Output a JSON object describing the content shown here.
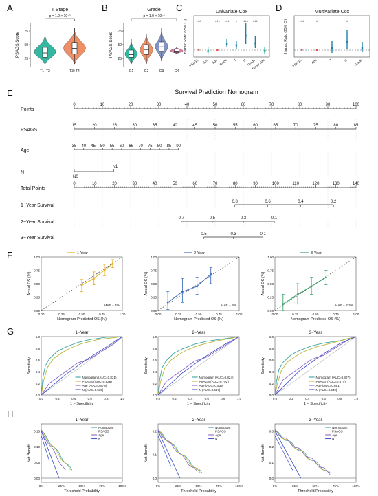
{
  "colors": {
    "violin_t12": "#2bb39b",
    "violin_t34": "#f08a5d",
    "g1": "#2bb39b",
    "g2": "#f08a5d",
    "g3": "#7b8fc0",
    "g4": "#ea6fa3",
    "ref": "#e0533a",
    "psags": "#2bb39b",
    "cox_alt": "#1f7fa8",
    "y1": "#e3b022",
    "y2": "#3d6fbf",
    "y3": "#3aa36a",
    "nomogram": "#3aa3a3",
    "psags_roc": "#b7b436",
    "age": "#8a63c9",
    "n": "#4457c9",
    "diag": "#bbbbbb"
  },
  "panel_letters": [
    "A",
    "B",
    "C",
    "D",
    "E",
    "F",
    "G",
    "H"
  ],
  "chart_data": [
    {
      "id": "A",
      "type": "violin",
      "title": "T Stage",
      "ylabel": "PSAGS Score",
      "categories": [
        "T1+T2",
        "T3+T4"
      ],
      "ylim": [
        10,
        90
      ],
      "yticks": [
        "25",
        "50",
        "75"
      ],
      "boxes": [
        {
          "q1": 27,
          "median": 35,
          "q3": 45,
          "min": 15,
          "max": 70
        },
        {
          "q1": 33,
          "median": 43,
          "q3": 54,
          "min": 15,
          "max": 80
        }
      ],
      "annotation": "p = 1.9 × 10⁻²"
    },
    {
      "id": "B",
      "type": "violin",
      "title": "Grade",
      "ylabel": "PSAGS Score",
      "categories": [
        "G1",
        "G2",
        "G3",
        "G4"
      ],
      "ylim": [
        10,
        90
      ],
      "yticks": [
        "25",
        "50",
        "75"
      ],
      "boxes": [
        {
          "q1": 27,
          "median": 32,
          "q3": 40,
          "min": 15,
          "max": 60
        },
        {
          "q1": 32,
          "median": 41,
          "q3": 50,
          "min": 15,
          "max": 70
        },
        {
          "q1": 38,
          "median": 46,
          "q3": 55,
          "min": 20,
          "max": 80
        },
        {
          "q1": 36,
          "median": 38,
          "q3": 42,
          "min": 34,
          "max": 45
        }
      ],
      "annotation": "p = 1.0 × 10⁻²"
    },
    {
      "id": "C",
      "type": "forest",
      "title": "Univariate Cox",
      "ylabel": "Hazard Ratio (95% CI)",
      "categories": [
        "PSAGS",
        "Sex",
        "Age",
        "Stage",
        "T",
        "N",
        "Grade",
        "Tumor size"
      ],
      "hr": [
        1.06,
        0.85,
        1.02,
        1.9,
        1.7,
        3.1,
        2.0,
        0.9
      ],
      "lo": [
        1.03,
        0.4,
        1.0,
        1.4,
        1.2,
        1.9,
        1.3,
        0.5
      ],
      "hi": [
        1.09,
        1.5,
        1.04,
        2.6,
        2.4,
        5.0,
        3.0,
        1.5
      ],
      "signif": [
        "***",
        "",
        "***",
        "***",
        "*",
        "***",
        "***",
        ""
      ]
    },
    {
      "id": "D",
      "type": "forest",
      "title": "Multivariate Cox",
      "ylabel": "Hazard Ratio (95% CI)",
      "categories": [
        "PSAGS",
        "Age",
        "T",
        "N",
        "Grade"
      ],
      "hr": [
        1.05,
        1.02,
        1.3,
        2.2,
        1.3
      ],
      "lo": [
        1.02,
        1.0,
        0.6,
        1.2,
        0.7
      ],
      "hi": [
        1.08,
        1.04,
        2.4,
        3.9,
        2.2
      ],
      "signif": [
        "***",
        "*",
        "",
        "*",
        ""
      ]
    },
    {
      "id": "E",
      "type": "nomogram",
      "title": "Survival Prediction Nomogram",
      "rows": [
        {
          "label": "Points",
          "ticks": [
            "0",
            "10",
            "20",
            "30",
            "40",
            "50",
            "60",
            "70",
            "80",
            "90",
            "100"
          ]
        },
        {
          "label": "PSAGS",
          "ticks": [
            "15",
            "20",
            "25",
            "30",
            "35",
            "40",
            "45",
            "50",
            "55",
            "60",
            "65",
            "70",
            "75",
            "80",
            "85"
          ]
        },
        {
          "label": "Age",
          "ticks": [
            "35",
            "40",
            "45",
            "50",
            "55",
            "60",
            "65",
            "70",
            "75",
            "80",
            "85",
            "90"
          ]
        },
        {
          "label": "N",
          "ticks": [
            "N0",
            "N1"
          ]
        },
        {
          "label": "Total Points",
          "ticks": [
            "0",
            "10",
            "20",
            "30",
            "40",
            "50",
            "60",
            "70",
            "80",
            "90",
            "100",
            "110",
            "120",
            "130",
            "140"
          ]
        },
        {
          "label": "1−Year Survival",
          "ticks": [
            "0.8",
            "0.6",
            "0.4",
            "0.2"
          ]
        },
        {
          "label": "2−Year Survival",
          "ticks": [
            "0.7",
            "0.5",
            "0.3",
            "0.1"
          ]
        },
        {
          "label": "3−Year Survival",
          "ticks": [
            "0.5",
            "0.3",
            "0.1"
          ]
        }
      ]
    },
    {
      "id": "F",
      "type": "line",
      "series_name": [
        "1-Year",
        "2-Year",
        "3-Year"
      ],
      "xlabel": "Nomogram-Predicted OS (%)",
      "ylabel": "Actual OS (%)",
      "xticks": [
        "0.00",
        "0.25",
        "0.50",
        "0.75",
        "1.00"
      ],
      "yticks": [
        "0.00",
        "0.25",
        "0.50",
        "0.75",
        "1.00"
      ],
      "mae": [
        "MAE = 4%",
        "MAE = 3%",
        "MAE = 2.3%"
      ],
      "points": [
        [
          [
            0.5,
            0.47
          ],
          [
            0.65,
            0.6
          ],
          [
            0.78,
            0.75
          ],
          [
            0.88,
            0.87
          ]
        ],
        [
          [
            0.12,
            0.15
          ],
          [
            0.3,
            0.35
          ],
          [
            0.48,
            0.45
          ],
          [
            0.65,
            0.68
          ]
        ],
        [
          [
            0.1,
            0.12
          ],
          [
            0.28,
            0.3
          ],
          [
            0.45,
            0.45
          ],
          [
            0.63,
            0.62
          ]
        ]
      ],
      "ci": [
        [
          [
            0.35,
            0.58
          ],
          [
            0.48,
            0.72
          ],
          [
            0.65,
            0.86
          ],
          [
            0.8,
            0.95
          ]
        ],
        [
          [
            0.02,
            0.35
          ],
          [
            0.15,
            0.6
          ],
          [
            0.3,
            0.62
          ],
          [
            0.5,
            0.8
          ]
        ],
        [
          [
            0.0,
            0.3
          ],
          [
            0.12,
            0.5
          ],
          [
            0.3,
            0.62
          ],
          [
            0.48,
            0.75
          ]
        ]
      ]
    },
    {
      "id": "G",
      "type": "line",
      "titles": [
        "1−Year",
        "2−Year",
        "3−Year"
      ],
      "xlabel": "1 − Specificity",
      "ylabel": "Sensitivity",
      "xticks": [
        "0.0",
        "0.2",
        "0.4",
        "0.6",
        "0.8",
        "1.0"
      ],
      "yticks": [
        "0.0",
        "0.2",
        "0.4",
        "0.6",
        "0.8",
        "1.0"
      ],
      "legends": [
        [
          "Nomogram (AUC=0.831)",
          "PSAGS (AUC=0.826)",
          "Age (AUC=0.578)",
          "N (AUC=0.535)"
        ],
        [
          "Nomogram (AUC=0.824)",
          "PSAGS (AUC=0.792)",
          "Age (AUC=0.539)",
          "N (AUC=0.617)"
        ],
        [
          "Nomogram (AUC=0.807)",
          "PSAGS (AUC=0.874)",
          "Age (AUC=0.661)",
          "N (AUC=0.549)"
        ]
      ]
    },
    {
      "id": "H",
      "type": "line",
      "titles": [
        "1−Year",
        "2−Year",
        "3−Year"
      ],
      "xlabel": "Threshold Probability",
      "ylabel": "Net Benefit",
      "xticks": [
        "0%",
        "25%",
        "50%",
        "75%",
        "100%"
      ],
      "yticks": [
        [
          "0.00",
          "0.05",
          "0.10",
          "0.15"
        ],
        [
          "0.0",
          "0.1",
          "0.2"
        ],
        [
          "0.0",
          "0.1",
          "0.2",
          "0.3"
        ]
      ],
      "legend": [
        "Nomogram",
        "PSAGS",
        "Age",
        "N"
      ]
    }
  ]
}
